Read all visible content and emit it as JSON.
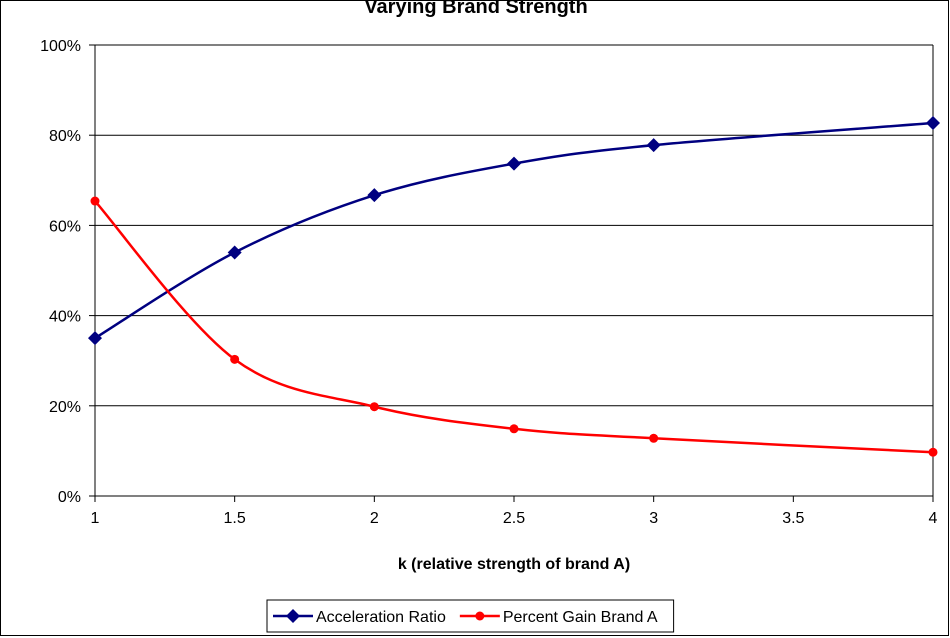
{
  "chart_data": {
    "type": "line",
    "title": "Varying Brand Strength",
    "xlabel": "k (relative strength of brand A)",
    "ylabel": "",
    "xlim": [
      1,
      4
    ],
    "ylim": [
      0,
      100
    ],
    "x_ticks": [
      "1",
      "1.5",
      "2",
      "2.5",
      "3",
      "3.5",
      "4"
    ],
    "y_ticks": [
      "0%",
      "20%",
      "40%",
      "60%",
      "80%",
      "100%"
    ],
    "grid": "horizontal",
    "legend_position": "bottom",
    "series": [
      {
        "name": "Acceleration Ratio",
        "color": "#000080",
        "marker": "diamond",
        "x": [
          1,
          1.5,
          2,
          2.5,
          3,
          4
        ],
        "values": [
          35,
          54,
          66.7,
          73.7,
          77.8,
          82.7
        ]
      },
      {
        "name": "Percent Gain Brand A",
        "color": "#ff0000",
        "marker": "circle",
        "x": [
          1,
          1.5,
          2,
          2.5,
          3,
          4
        ],
        "values": [
          65.4,
          30.3,
          19.8,
          14.9,
          12.8,
          9.7
        ]
      }
    ]
  }
}
